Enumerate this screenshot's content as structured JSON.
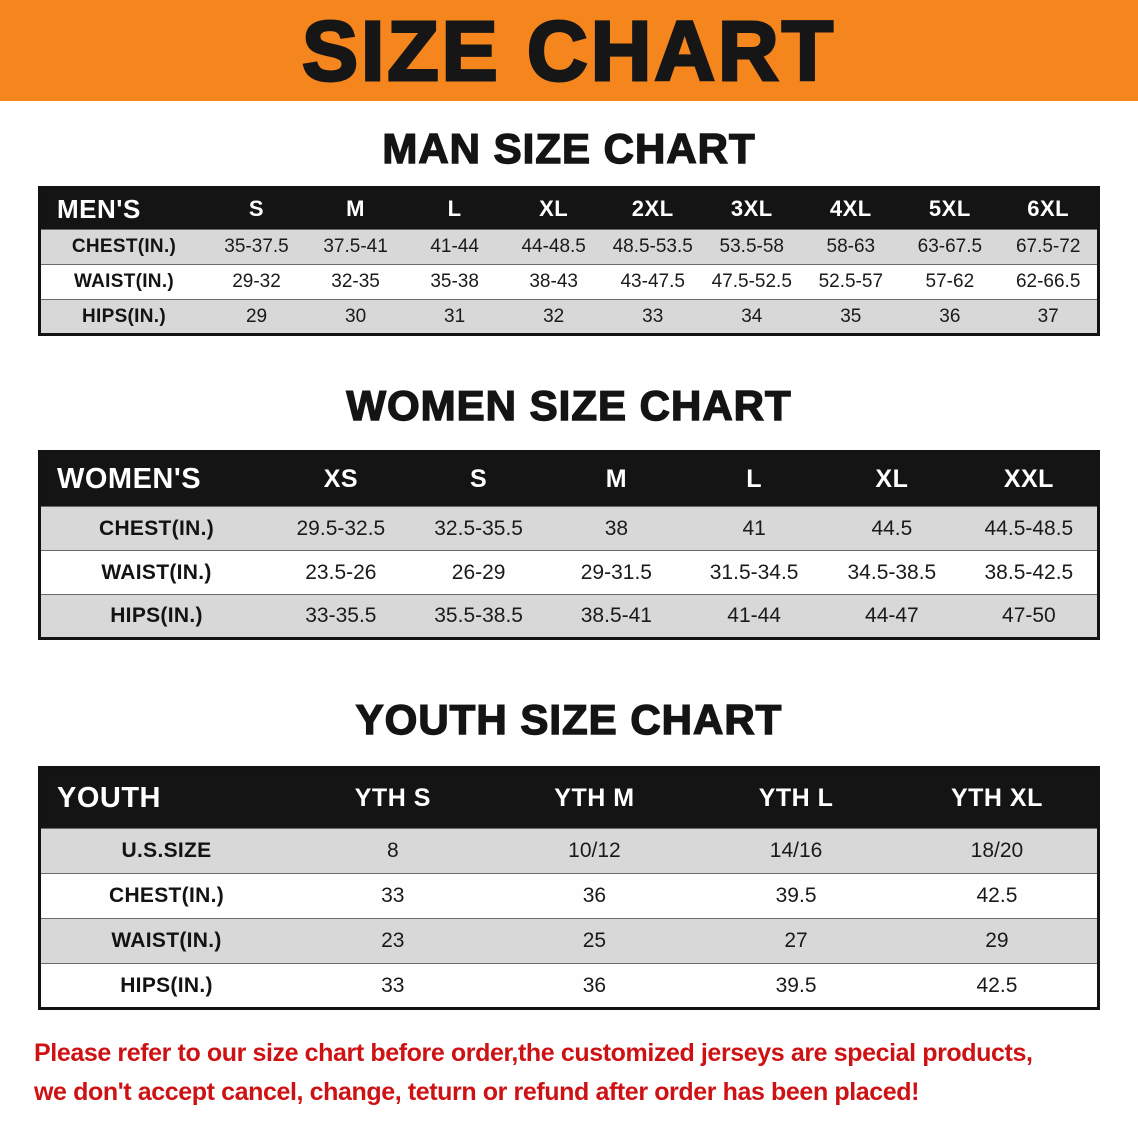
{
  "banner": {
    "title": "SIZE CHART"
  },
  "colors": {
    "banner-bg": "#F5851D",
    "banner-text": "#161616",
    "head-bg": "#141414",
    "head-text": "#FFFFFF",
    "row-alt": "#D8D8D8",
    "row-base": "#FEFEFE",
    "notice": "#CE1113",
    "ink": "#141414"
  },
  "sections": [
    {
      "key": "men",
      "heading": "MAN SIZE CHART",
      "table": {
        "header": [
          "MEN'S",
          "S",
          "M",
          "L",
          "XL",
          "2XL",
          "3XL",
          "4XL",
          "5XL",
          "6XL"
        ],
        "rows": [
          {
            "label": "CHEST(IN.)",
            "values": [
              "35-37.5",
              "37.5-41",
              "41-44",
              "44-48.5",
              "48.5-53.5",
              "53.5-58",
              "58-63",
              "63-67.5",
              "67.5-72"
            ]
          },
          {
            "label": "WAIST(IN.)",
            "values": [
              "29-32",
              "32-35",
              "35-38",
              "38-43",
              "43-47.5",
              "47.5-52.5",
              "52.5-57",
              "57-62",
              "62-66.5"
            ]
          },
          {
            "label": "HIPS(IN.)",
            "values": [
              "29",
              "30",
              "31",
              "32",
              "33",
              "34",
              "35",
              "36",
              "37"
            ]
          }
        ]
      }
    },
    {
      "key": "women",
      "heading": "WOMEN SIZE CHART",
      "table": {
        "header": [
          "WOMEN'S",
          "XS",
          "S",
          "M",
          "L",
          "XL",
          "XXL"
        ],
        "rows": [
          {
            "label": "CHEST(IN.)",
            "values": [
              "29.5-32.5",
              "32.5-35.5",
              "38",
              "41",
              "44.5",
              "44.5-48.5"
            ]
          },
          {
            "label": "WAIST(IN.)",
            "values": [
              "23.5-26",
              "26-29",
              "29-31.5",
              "31.5-34.5",
              "34.5-38.5",
              "38.5-42.5"
            ]
          },
          {
            "label": "HIPS(IN.)",
            "values": [
              "33-35.5",
              "35.5-38.5",
              "38.5-41",
              "41-44",
              "44-47",
              "47-50"
            ]
          }
        ]
      }
    },
    {
      "key": "youth",
      "heading": "YOUTH SIZE CHART",
      "table": {
        "header": [
          "YOUTH",
          "YTH S",
          "YTH M",
          "YTH L",
          "YTH XL"
        ],
        "rows": [
          {
            "label": "U.S.SIZE",
            "values": [
              "8",
              "10/12",
              "14/16",
              "18/20"
            ]
          },
          {
            "label": "CHEST(IN.)",
            "values": [
              "33",
              "36",
              "39.5",
              "42.5"
            ]
          },
          {
            "label": "WAIST(IN.)",
            "values": [
              "23",
              "25",
              "27",
              "29"
            ]
          },
          {
            "label": "HIPS(IN.)",
            "values": [
              "33",
              "36",
              "39.5",
              "42.5"
            ]
          }
        ]
      }
    }
  ],
  "notice": {
    "lines": [
      "Please refer to our size chart before order,the customized jerseys are special products,",
      "we don't accept cancel, change, teturn or refund after order has been placed!"
    ]
  }
}
